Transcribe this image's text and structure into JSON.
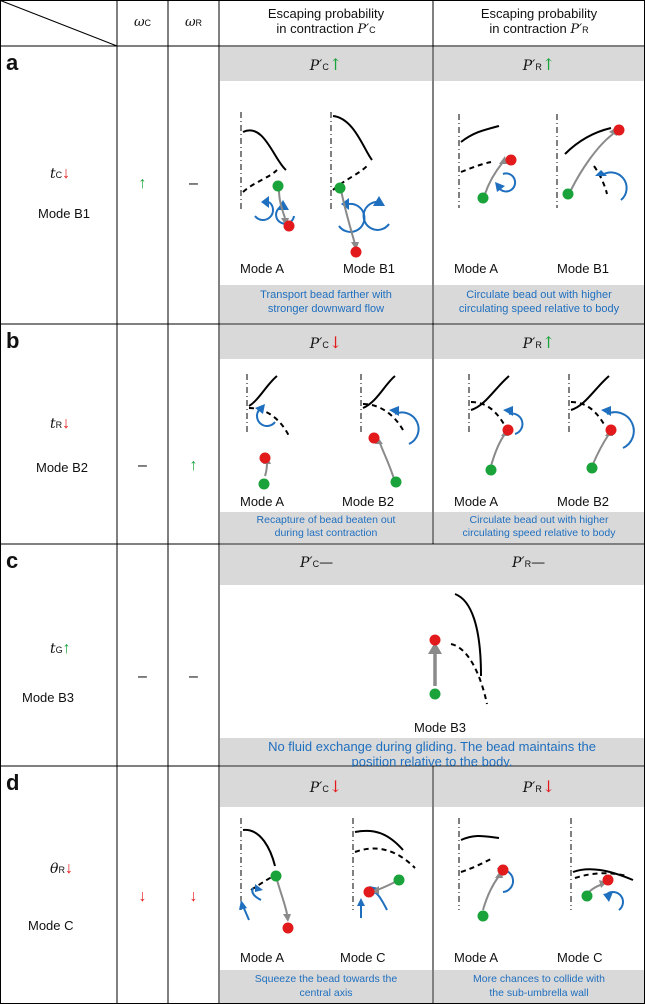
{
  "header": {
    "omega_c": "ω",
    "omega_c_sub": "C",
    "omega_r": "ω",
    "omega_r_sub": "R",
    "col_c_line1": "Escaping probability",
    "col_c_line2": "in contraction ",
    "col_c_sym": "P′",
    "col_c_sub": "C",
    "col_r_line1": "Escaping probability",
    "col_r_line2": "in contraction ",
    "col_r_sym": "P′",
    "col_r_sub": "R"
  },
  "rows": [
    {
      "letter": "a",
      "param": "t",
      "param_sub": "C",
      "param_arrow": "↓",
      "mode": "Mode B1",
      "omega_c": "↑",
      "omega_r": "–",
      "pc_sym": "P′",
      "pc_sub": "C",
      "pc_arrow": "↑",
      "pr_sym": "P′",
      "pr_sub": "R",
      "pr_arrow": "↑",
      "left_modes": [
        "Mode A",
        "Mode B1"
      ],
      "right_modes": [
        "Mode A",
        "Mode B1"
      ],
      "left_band": [
        "Transport bead farther with",
        "stronger downward flow"
      ],
      "right_band": [
        "Circulate bead out with higher",
        "circulating speed relative to body"
      ]
    },
    {
      "letter": "b",
      "param": "t",
      "param_sub": "R",
      "param_arrow": "↓",
      "mode": "Mode B2",
      "omega_c": "–",
      "omega_r": "↑",
      "pc_sym": "P′",
      "pc_sub": "C",
      "pc_arrow": "↓",
      "pr_sym": "P′",
      "pr_sub": "R",
      "pr_arrow": "↑",
      "left_modes": [
        "Mode A",
        "Mode B2"
      ],
      "right_modes": [
        "Mode A",
        "Mode B2"
      ],
      "left_band": [
        "Recapture of bead beaten out",
        "during last contraction"
      ],
      "right_band": [
        "Circulate bead out with higher",
        "circulating speed relative to body"
      ]
    },
    {
      "letter": "c",
      "param": "t",
      "param_sub": "G",
      "param_arrow": "↑",
      "mode": "Mode B3",
      "omega_c": "–",
      "omega_r": "–",
      "pc_sym": "P′",
      "pc_sub": "C",
      "pc_arrow": "—",
      "pr_sym": "P′",
      "pr_sub": "R",
      "pr_arrow": "—",
      "center_mode": "Mode B3",
      "band": [
        "No fluid exchange during gliding. The bead maintains the",
        "position relative to the body."
      ]
    },
    {
      "letter": "d",
      "param": "θ",
      "param_sub": "R",
      "param_arrow": "↓",
      "mode": "Mode C",
      "omega_c": "↓",
      "omega_r": "↓",
      "pc_sym": "P′",
      "pc_sub": "C",
      "pc_arrow": "↓",
      "pr_sym": "P′",
      "pr_sub": "R",
      "pr_arrow": "↓",
      "left_modes": [
        "Mode A",
        "Mode C"
      ],
      "right_modes": [
        "Mode A",
        "Mode C"
      ],
      "left_band": [
        "Squeeze the bead towards the",
        "central axis"
      ],
      "right_band": [
        "More chances to collide with",
        "the sub-umbrella wall"
      ]
    }
  ],
  "colors": {
    "green": "#1aa33a",
    "red": "#e31a1c",
    "blue": "#1f6fbf",
    "gray_fill": "#d9d9d9",
    "arrow_gray": "#8a8a8a"
  }
}
